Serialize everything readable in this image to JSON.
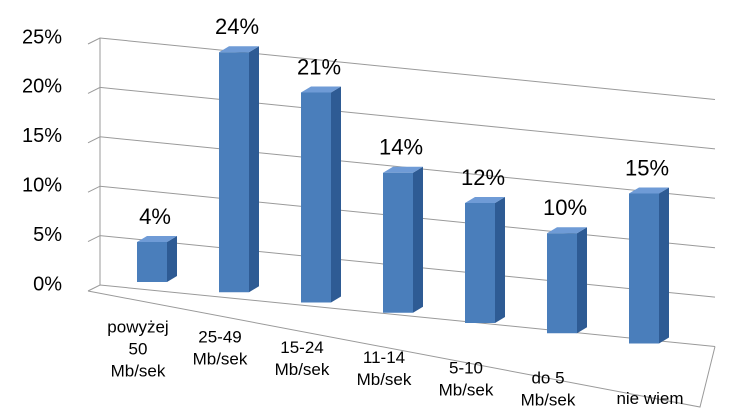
{
  "chart_data": {
    "type": "bar3d",
    "categories": [
      [
        "powyżej",
        "50",
        "Mb/sek"
      ],
      [
        "25-49",
        "Mb/sek"
      ],
      [
        "15-24",
        "Mb/sek"
      ],
      [
        "11-14",
        "Mb/sek"
      ],
      [
        "5-10",
        "Mb/sek"
      ],
      [
        "do 5",
        "Mb/sek"
      ],
      [
        "nie wiem"
      ]
    ],
    "values": [
      4,
      24,
      21,
      14,
      12,
      10,
      15
    ],
    "value_labels": [
      "4%",
      "24%",
      "21%",
      "14%",
      "12%",
      "10%",
      "15%"
    ],
    "color": "#4a7ebb",
    "ylim": [
      0,
      25
    ],
    "yticks": [
      {
        "value": 0,
        "label": "0%"
      },
      {
        "value": 5,
        "label": "5%"
      },
      {
        "value": 10,
        "label": "10%"
      },
      {
        "value": 15,
        "label": "15%"
      },
      {
        "value": 20,
        "label": "20%"
      },
      {
        "value": 25,
        "label": "25%"
      }
    ],
    "grid": true
  }
}
